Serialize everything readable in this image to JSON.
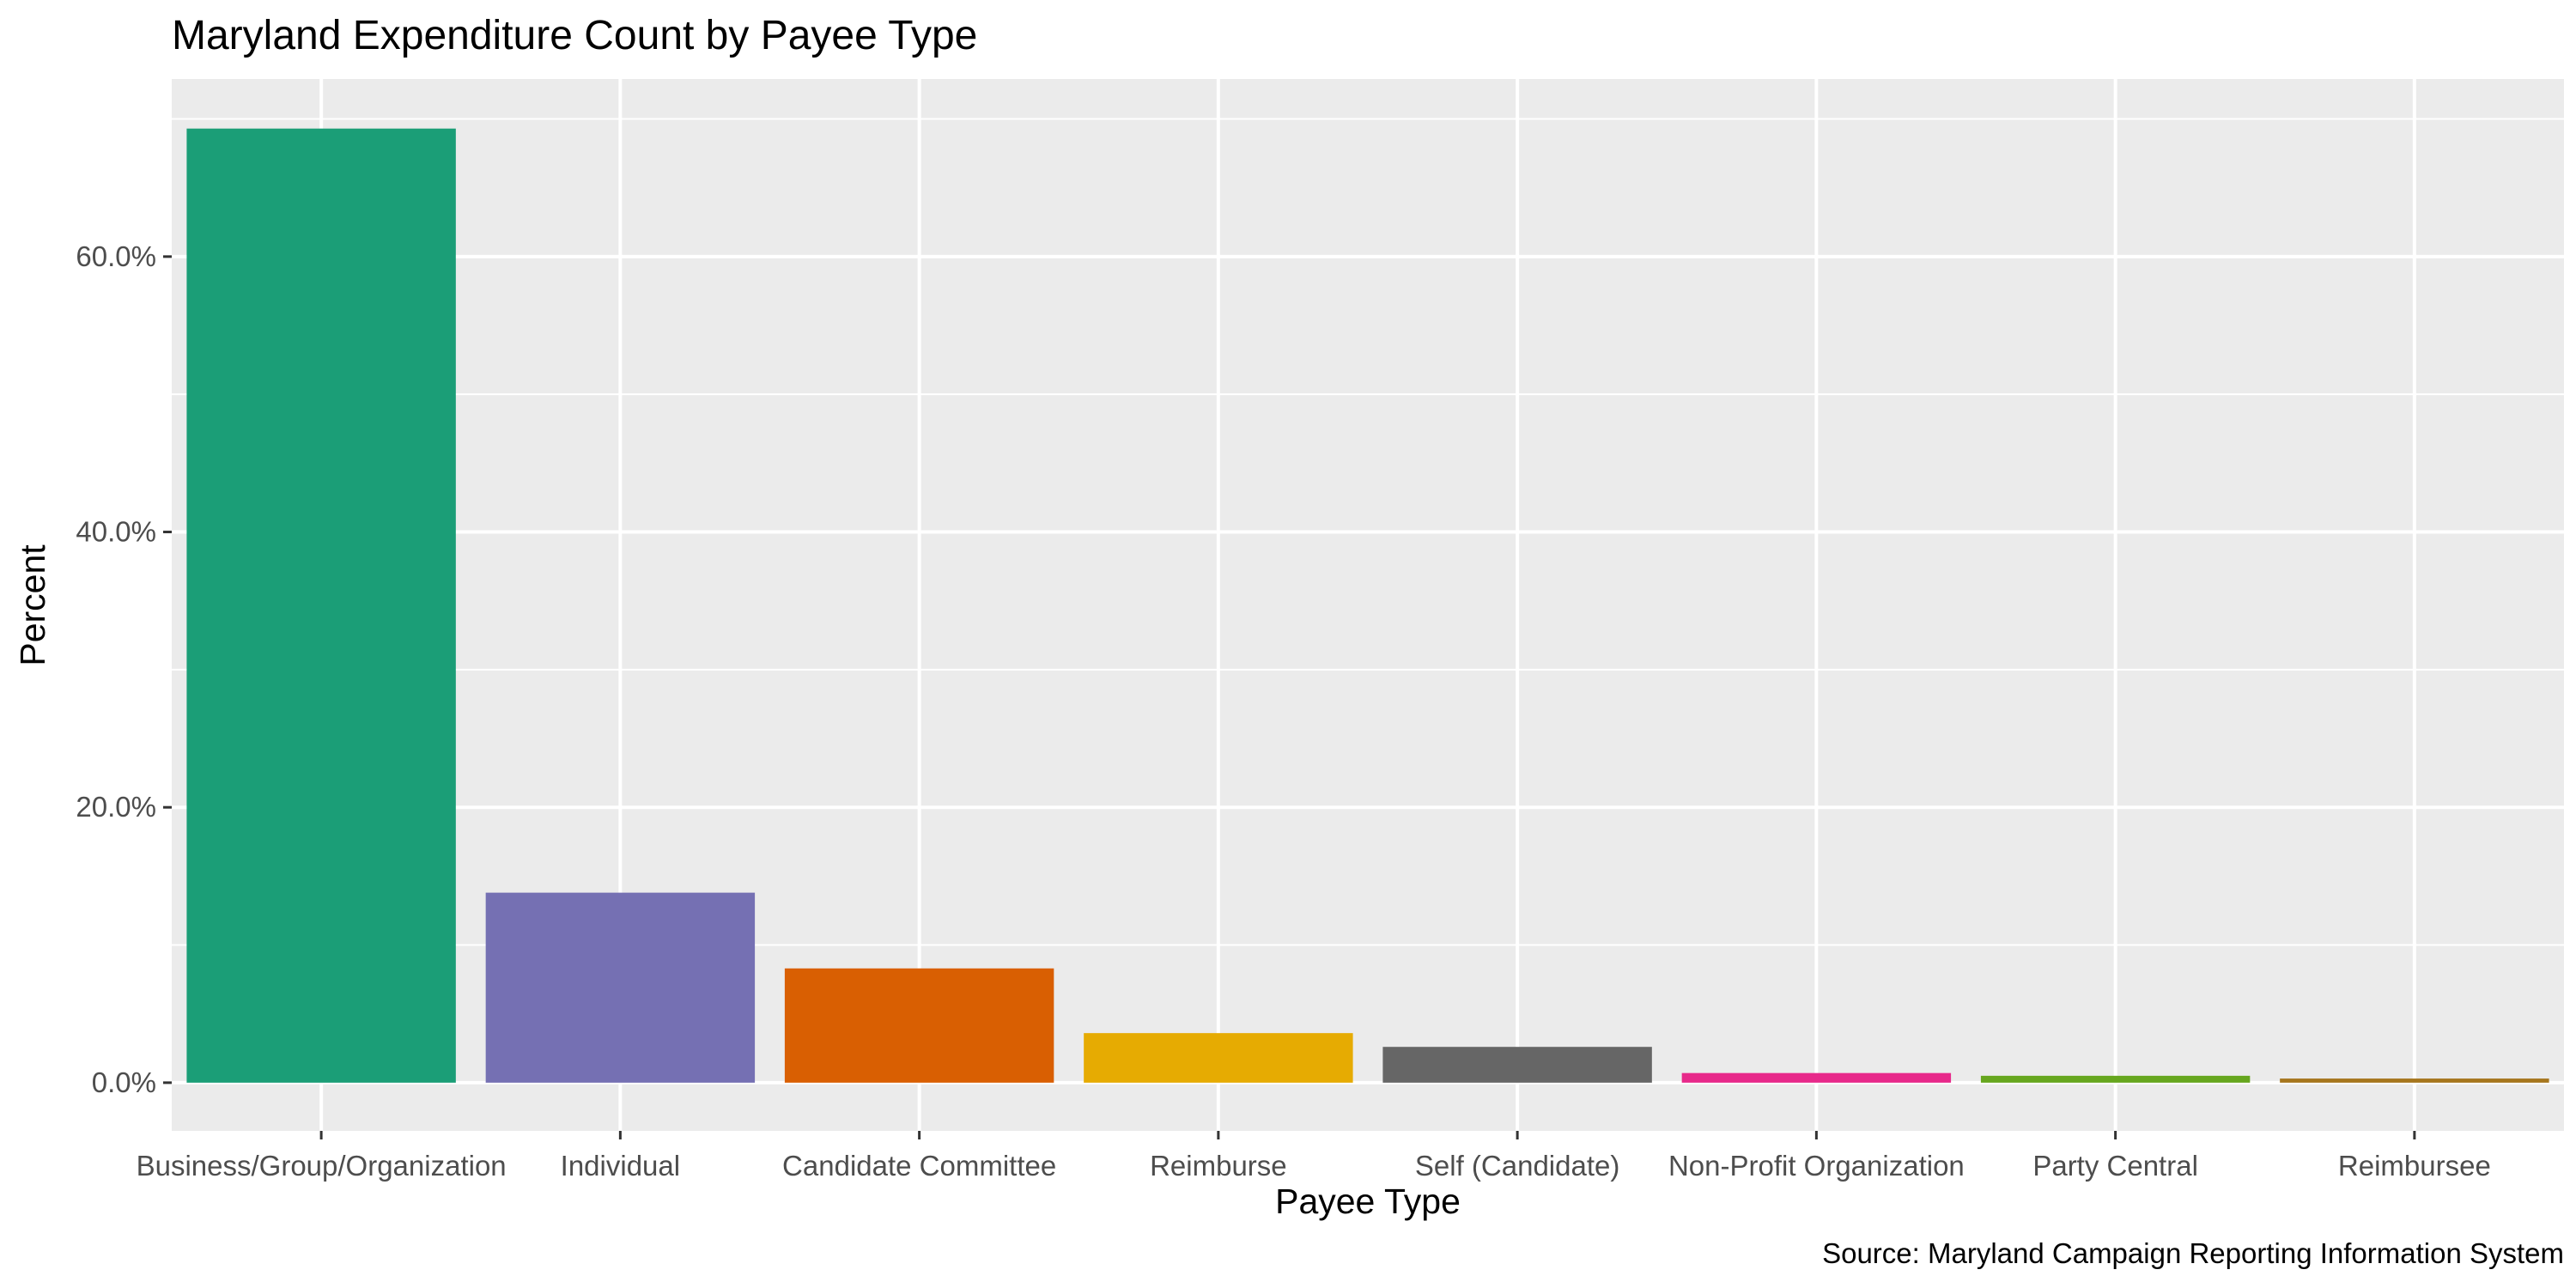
{
  "chart_data": {
    "type": "bar",
    "title": "Maryland Expenditure Count by Payee Type",
    "xlabel": "Payee Type",
    "ylabel": "Percent",
    "caption": "Source: Maryland Campaign Reporting Information System",
    "categories": [
      "Business/Group/Organization",
      "Individual",
      "Candidate Committee",
      "Reimburse",
      "Self (Candidate)",
      "Non-Profit Organization",
      "Party Central",
      "Reimbursee"
    ],
    "values": [
      69.3,
      13.8,
      8.3,
      3.6,
      2.6,
      0.7,
      0.5,
      0.3
    ],
    "colors": [
      "#1b9e77",
      "#7570b3",
      "#d95f02",
      "#e6ab02",
      "#666666",
      "#e7298a",
      "#66a61e",
      "#a6761d"
    ],
    "y_ticks": [
      0,
      20,
      40,
      60
    ],
    "y_tick_labels": [
      "0.0%",
      "20.0%",
      "40.0%",
      "60.0%"
    ],
    "ylim": [
      -3.5,
      72.9
    ],
    "grid": true,
    "legend": "none",
    "panel_background": "#ebebeb",
    "grid_color": "#ffffff"
  }
}
